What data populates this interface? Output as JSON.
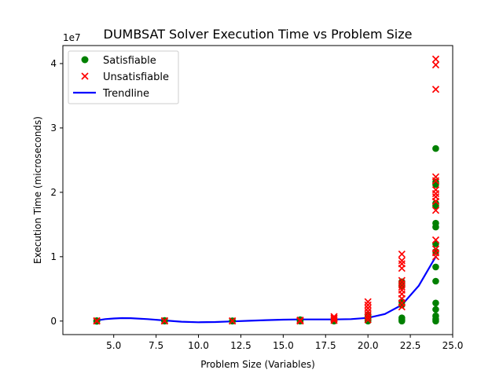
{
  "chart_data": {
    "type": "scatter",
    "title": "DUMBSAT Solver Execution Time vs Problem Size",
    "xlabel": "Problem Size (Variables)",
    "ylabel": "Execution Time (microseconds)",
    "y_offset_label": "1e7",
    "y_scale_factor": 10000000,
    "xlim": [
      2.0,
      25.0
    ],
    "ylim": [
      -2100000,
      42800000
    ],
    "x_ticks": [
      5.0,
      7.5,
      10.0,
      12.5,
      15.0,
      17.5,
      20.0,
      22.5,
      25.0
    ],
    "x_tick_labels": [
      "5.0",
      "7.5",
      "10.0",
      "12.5",
      "15.0",
      "17.5",
      "20.0",
      "22.5",
      "25.0"
    ],
    "y_ticks": [
      0,
      10000000,
      20000000,
      30000000,
      40000000
    ],
    "y_tick_labels": [
      "0",
      "1",
      "2",
      "3",
      "4"
    ],
    "grid": false,
    "legend_position": "top-left",
    "legend": [
      {
        "label": "Satisfiable",
        "marker": "circle",
        "color": "#008000"
      },
      {
        "label": "Unsatisfiable",
        "marker": "x",
        "color": "#ff0000"
      },
      {
        "label": "Trendline",
        "marker": "line",
        "color": "#0000ff"
      }
    ],
    "series": [
      {
        "name": "Satisfiable",
        "marker": "circle",
        "color": "#008000",
        "points": [
          [
            4,
            0
          ],
          [
            4,
            30000
          ],
          [
            4,
            60000
          ],
          [
            4,
            -40000
          ],
          [
            8,
            0
          ],
          [
            8,
            40000
          ],
          [
            8,
            80000
          ],
          [
            12,
            0
          ],
          [
            12,
            50000
          ],
          [
            16,
            0
          ],
          [
            16,
            100000
          ],
          [
            16,
            200000
          ],
          [
            18,
            0
          ],
          [
            18,
            150000
          ],
          [
            18,
            300000
          ],
          [
            20,
            0
          ],
          [
            20,
            200000
          ],
          [
            20,
            400000
          ],
          [
            20,
            700000
          ],
          [
            20,
            1000000
          ],
          [
            22,
            0
          ],
          [
            22,
            200000
          ],
          [
            22,
            500000
          ],
          [
            22,
            2500000
          ],
          [
            22,
            3000000
          ],
          [
            22,
            5500000
          ],
          [
            22,
            6100000
          ],
          [
            24,
            0
          ],
          [
            24,
            300000
          ],
          [
            24,
            800000
          ],
          [
            24,
            1800000
          ],
          [
            24,
            2800000
          ],
          [
            24,
            6200000
          ],
          [
            24,
            8400000
          ],
          [
            24,
            10800000
          ],
          [
            24,
            12000000
          ],
          [
            24,
            14600000
          ],
          [
            24,
            15200000
          ],
          [
            24,
            17900000
          ],
          [
            24,
            18300000
          ],
          [
            24,
            21200000
          ],
          [
            24,
            21600000
          ],
          [
            24,
            26800000
          ]
        ]
      },
      {
        "name": "Unsatisfiable",
        "marker": "x",
        "color": "#ff0000",
        "points": [
          [
            4,
            0
          ],
          [
            4,
            20000
          ],
          [
            4,
            50000
          ],
          [
            8,
            0
          ],
          [
            8,
            30000
          ],
          [
            8,
            60000
          ],
          [
            12,
            0
          ],
          [
            12,
            40000
          ],
          [
            16,
            0
          ],
          [
            16,
            80000
          ],
          [
            16,
            150000
          ],
          [
            18,
            100000
          ],
          [
            18,
            300000
          ],
          [
            18,
            500000
          ],
          [
            18,
            700000
          ],
          [
            20,
            200000
          ],
          [
            20,
            600000
          ],
          [
            20,
            1000000
          ],
          [
            20,
            1500000
          ],
          [
            20,
            2000000
          ],
          [
            20,
            2500000
          ],
          [
            20,
            3000000
          ],
          [
            22,
            2200000
          ],
          [
            22,
            2800000
          ],
          [
            22,
            3500000
          ],
          [
            22,
            4200000
          ],
          [
            22,
            4800000
          ],
          [
            22,
            5300000
          ],
          [
            22,
            5800000
          ],
          [
            22,
            6300000
          ],
          [
            22,
            8200000
          ],
          [
            22,
            8900000
          ],
          [
            22,
            9400000
          ],
          [
            22,
            10400000
          ],
          [
            24,
            10000000
          ],
          [
            24,
            10600000
          ],
          [
            24,
            11200000
          ],
          [
            24,
            12600000
          ],
          [
            24,
            17200000
          ],
          [
            24,
            18600000
          ],
          [
            24,
            19300000
          ],
          [
            24,
            19800000
          ],
          [
            24,
            20400000
          ],
          [
            24,
            21800000
          ],
          [
            24,
            22400000
          ],
          [
            24,
            36000000
          ],
          [
            24,
            39800000
          ],
          [
            24,
            40700000
          ]
        ]
      }
    ],
    "trendline": {
      "name": "Trendline",
      "color": "#0000ff",
      "points": [
        [
          4,
          100000
        ],
        [
          4.5,
          300000
        ],
        [
          5,
          400000
        ],
        [
          5.5,
          460000
        ],
        [
          6,
          450000
        ],
        [
          7,
          300000
        ],
        [
          8,
          100000
        ],
        [
          9,
          -100000
        ],
        [
          10,
          -180000
        ],
        [
          11,
          -150000
        ],
        [
          12,
          -50000
        ],
        [
          13,
          50000
        ],
        [
          14,
          150000
        ],
        [
          15,
          220000
        ],
        [
          16,
          250000
        ],
        [
          17,
          250000
        ],
        [
          18,
          250000
        ],
        [
          19,
          300000
        ],
        [
          20,
          500000
        ],
        [
          21,
          1100000
        ],
        [
          22,
          2500000
        ],
        [
          23,
          5500000
        ],
        [
          24,
          10000000
        ]
      ]
    }
  }
}
